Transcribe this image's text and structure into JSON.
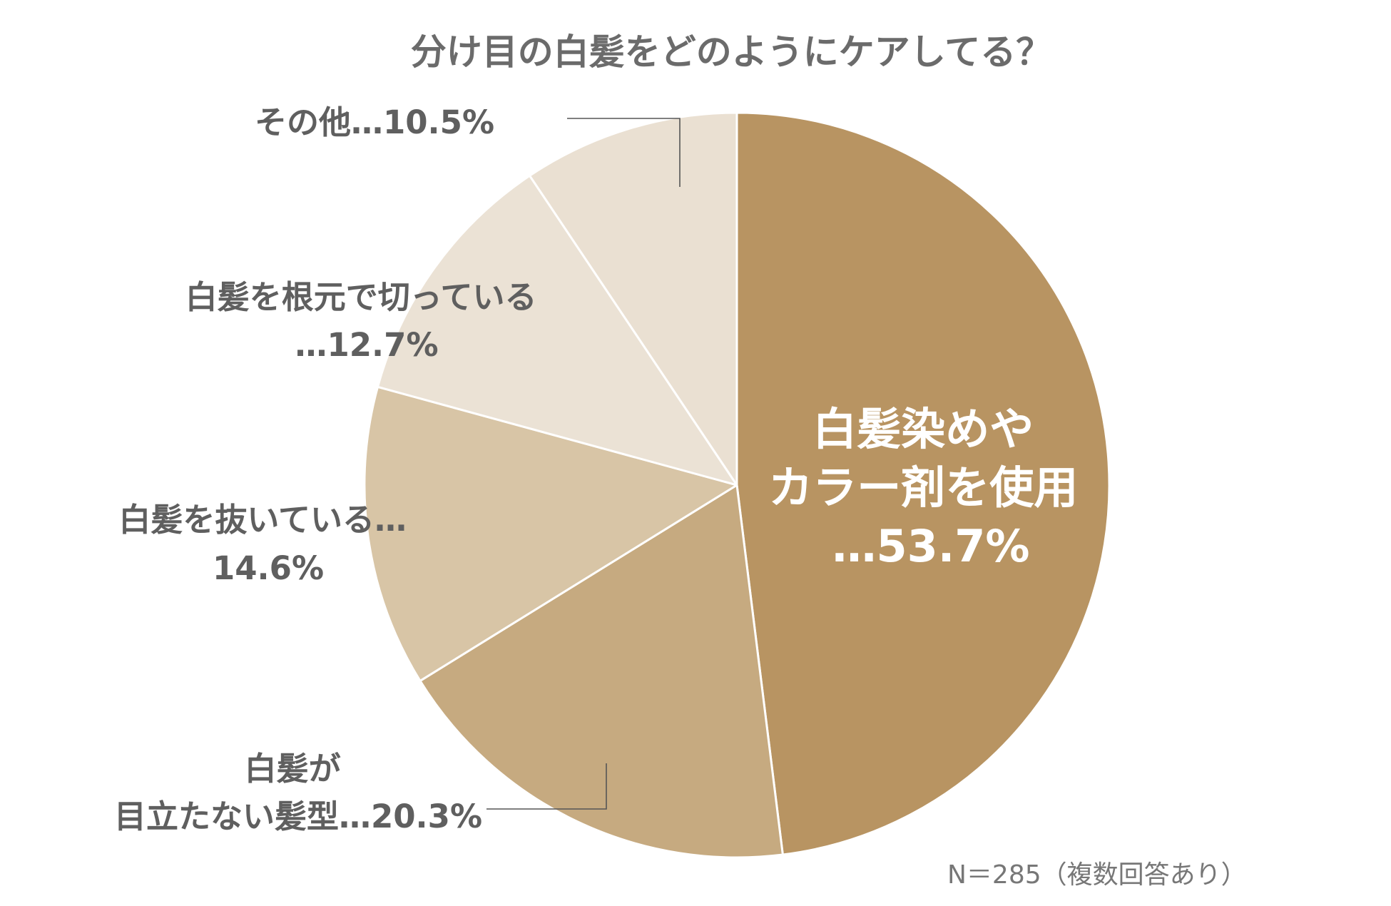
{
  "chart_data": {
    "type": "pie",
    "title": "分け目の白髪をどのようにケアしてる？",
    "note": "N＝285（複数回答あり）",
    "start_angle_deg": 0,
    "direction": "clockwise",
    "slices": [
      {
        "name": "白髪染めやカラー剤を使用",
        "value": 53.7,
        "color": "#b89462",
        "label_lines": [
          "白髪染めや",
          "カラー剤を使用",
          "…53.7%"
        ]
      },
      {
        "name": "白髪が目立たない髪型",
        "value": 20.3,
        "color": "#c6aa80",
        "label_lines": [
          "白髪が",
          "目立たない髪型…20.3%"
        ]
      },
      {
        "name": "白髪を抜いている",
        "value": 14.6,
        "color": "#d8c5a6",
        "label_lines": [
          "白髪を抜いている…",
          "14.6%"
        ]
      },
      {
        "name": "白髪を根元で切っている",
        "value": 12.7,
        "color": "#ebe2d5",
        "label_lines": [
          "白髪を根元で切っている",
          "…12.7%"
        ]
      },
      {
        "name": "その他",
        "value": 10.5,
        "color": "#eae0d2",
        "label_lines": [
          "その他…10.5%"
        ]
      }
    ]
  }
}
